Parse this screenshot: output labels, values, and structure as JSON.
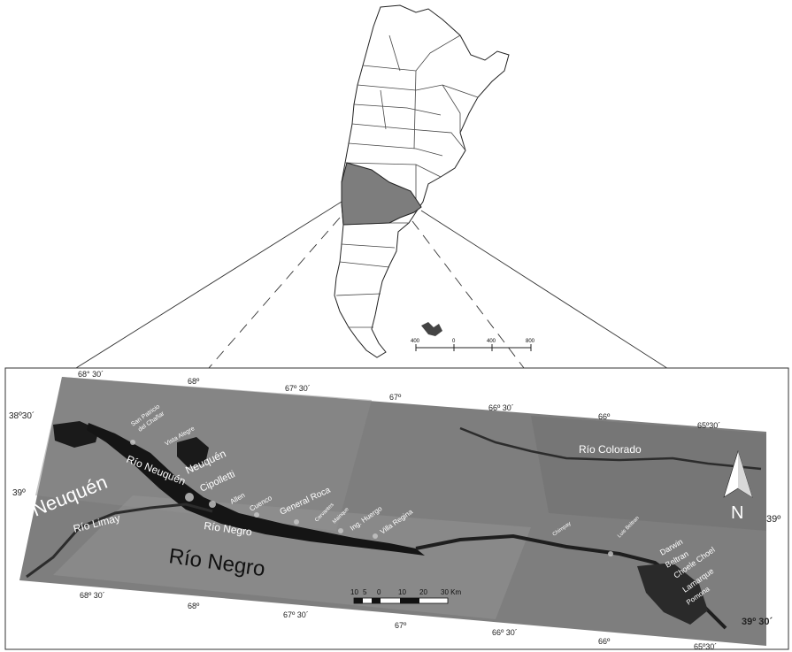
{
  "inset_map": {
    "scale_labels": [
      "400",
      "0",
      "400",
      "800"
    ]
  },
  "main_map": {
    "top_ticks": [
      "68° 30´",
      "68º",
      "67º 30´",
      "67º",
      "66º 30´",
      "66º",
      "65º30´"
    ],
    "bottom_ticks": [
      "68º 30´",
      "68º",
      "67º 30´",
      "67º",
      "66º 30´",
      "66º",
      "65º30´"
    ],
    "left_ticks": [
      "38º30´",
      "39º"
    ],
    "right_ticks": [
      "39º",
      "39º 30´"
    ],
    "north_label": "N",
    "provinces": {
      "neuquen": "Neuquén",
      "rio_negro": "Río Negro"
    },
    "rivers": {
      "neuquen": "Río Neuquén",
      "limay": "Río Limay",
      "negro": "Río Negro",
      "colorado": "Río Colorado"
    },
    "cities": {
      "san_patricio_line1": "San Patricio",
      "san_patricio_line2": "del Chañar",
      "vista_alegre": "Vista Alegre",
      "neuquen": "Neuquén",
      "cipolletti": "Cipolletti",
      "allen": "Allen",
      "cuenco": "Cuenco",
      "general_roca": "General Roca",
      "cervantes": "Cervantes",
      "mainque": "Mainque",
      "ing_huergo": "Ing. Huergo",
      "villa_regina": "Villa Regina",
      "chimpay": "Chimpay",
      "luis_beltran_small": "Luis Beltran",
      "darwin": "Darwin",
      "beltran": "Beltran",
      "choele_choel": "Choele Choel",
      "lamarque": "Lamarque",
      "pomona": "Pomona"
    },
    "scale_bar": {
      "labels": [
        "10",
        "5",
        "0",
        "10",
        "20",
        "30 Km"
      ]
    }
  }
}
